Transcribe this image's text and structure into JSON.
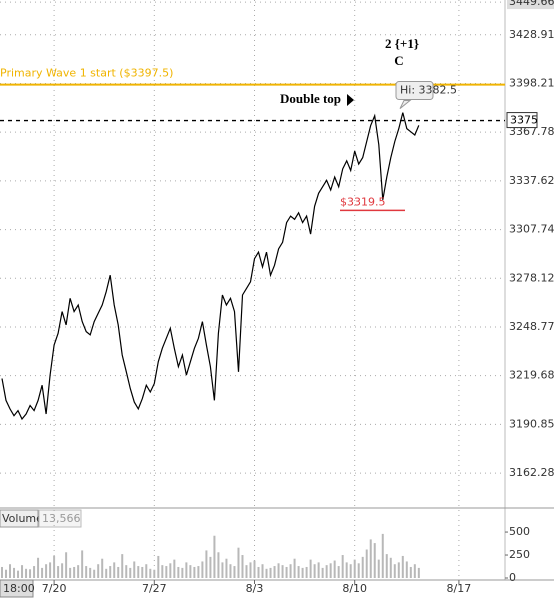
{
  "chart_data": [
    {
      "type": "line",
      "color": "#000000",
      "log_scale": true,
      "grid": true,
      "categories": [
        null,
        null,
        null,
        null,
        null,
        null,
        null,
        null,
        null,
        null,
        null,
        null,
        null,
        "7/20",
        null,
        null,
        null,
        null,
        null,
        null,
        null,
        null,
        null,
        null,
        null,
        null,
        null,
        null,
        null,
        null,
        null,
        null,
        null,
        null,
        null,
        null,
        null,
        null,
        "7/27",
        null,
        null,
        null,
        null,
        null,
        null,
        null,
        null,
        null,
        null,
        null,
        null,
        null,
        null,
        null,
        null,
        null,
        null,
        null,
        null,
        null,
        null,
        null,
        null,
        "8/3",
        null,
        null,
        null,
        null,
        null,
        null,
        null,
        null,
        null,
        null,
        null,
        null,
        null,
        null,
        null,
        null,
        null,
        null,
        null,
        null,
        null,
        null,
        null,
        null,
        "8/10",
        null,
        null,
        null,
        null,
        null,
        null,
        null,
        null,
        null,
        null,
        null,
        null,
        null,
        null,
        null,
        null,
        null,
        null,
        null,
        null,
        null,
        null,
        null,
        null,
        null,
        "8/17",
        null,
        null,
        null,
        null,
        null,
        null,
        null,
        null,
        null,
        null,
        null
      ],
      "values": [
        3218,
        3205,
        3200,
        3196,
        3199,
        3194,
        3197,
        3202,
        3199,
        3205,
        3214,
        3197,
        3220,
        3238,
        3245,
        3258,
        3250,
        3266,
        3258,
        3262,
        3252,
        3246,
        3244,
        3252,
        3257,
        3262,
        3270,
        3280,
        3262,
        3250,
        3232,
        3222,
        3212,
        3204,
        3200,
        3206,
        3214,
        3210,
        3215,
        3228,
        3236,
        3242,
        3248,
        3236,
        3225,
        3232,
        3220,
        3228,
        3236,
        3242,
        3252,
        3238,
        3225,
        3205,
        3245,
        3268,
        3262,
        3266,
        3258,
        3222,
        3268,
        3272,
        3276,
        3290,
        3294,
        3285,
        3294,
        3280,
        3286,
        3296,
        3300,
        3312,
        3316,
        3314,
        3318,
        3312,
        3316,
        3305,
        3322,
        3330,
        3334,
        3338,
        3332,
        3340,
        3334,
        3345,
        3350,
        3344,
        3356,
        3348,
        3352,
        3362,
        3372,
        3378,
        3360,
        3326,
        3340,
        3352,
        3362,
        3370,
        3380,
        3370,
        3368,
        3366,
        3372,
        null,
        null,
        null,
        null,
        null,
        null,
        null,
        null,
        null,
        null,
        null,
        null,
        null,
        null,
        null,
        null,
        null,
        null,
        null,
        null,
        null
      ],
      "ylim": [
        3143.7,
        3451.0
      ],
      "yticks": [
        3162.28,
        3190.85,
        3219.68,
        3248.77,
        3278.12,
        3307.74,
        3337.62,
        3367.78,
        3398.21,
        3428.91,
        3449.66
      ],
      "level_line": {
        "value": 3397.5,
        "label": "Primary Wave 1 start ($3397.5)",
        "color": "#f0b400"
      },
      "price_marker": 3375,
      "high": {
        "value": 3382.5,
        "label": "Hi: 3382.5"
      },
      "low": {
        "value": 3319.5,
        "label": "$3319.5",
        "color": "#e0383e"
      },
      "note_double_top": "Double top",
      "wave_label": "2 {+1}",
      "wave_letter": "C",
      "cursor_time": "18:00"
    },
    {
      "type": "bar",
      "title": "Volume",
      "color": "#b8b8b8",
      "current": {
        "value": 13566,
        "label": "13,566"
      },
      "values": [
        120,
        90,
        150,
        110,
        80,
        140,
        100,
        95,
        130,
        220,
        110,
        150,
        170,
        240,
        130,
        160,
        280,
        110,
        120,
        140,
        300,
        130,
        110,
        90,
        150,
        210,
        100,
        130,
        170,
        120,
        260,
        140,
        110,
        180,
        130,
        120,
        150,
        100,
        90,
        240,
        140,
        130,
        160,
        200,
        120,
        110,
        170,
        140,
        120,
        130,
        180,
        300,
        230,
        460,
        280,
        170,
        210,
        150,
        130,
        330,
        250,
        140,
        170,
        190,
        120,
        150,
        100,
        110,
        130,
        160,
        140,
        120,
        150,
        210,
        130,
        110,
        120,
        200,
        150,
        170,
        110,
        140,
        160,
        190,
        130,
        250,
        170,
        150,
        200,
        160,
        230,
        310,
        420,
        380,
        200,
        480,
        260,
        220,
        150,
        170,
        240,
        180,
        120,
        150,
        110,
        null,
        null,
        null,
        null,
        null,
        null,
        null,
        null,
        null,
        null,
        null,
        null,
        null,
        null,
        null,
        null,
        null,
        null,
        null,
        null,
        null
      ],
      "ylim": [
        0,
        740
      ],
      "yticks": [
        0,
        250,
        500
      ]
    }
  ]
}
